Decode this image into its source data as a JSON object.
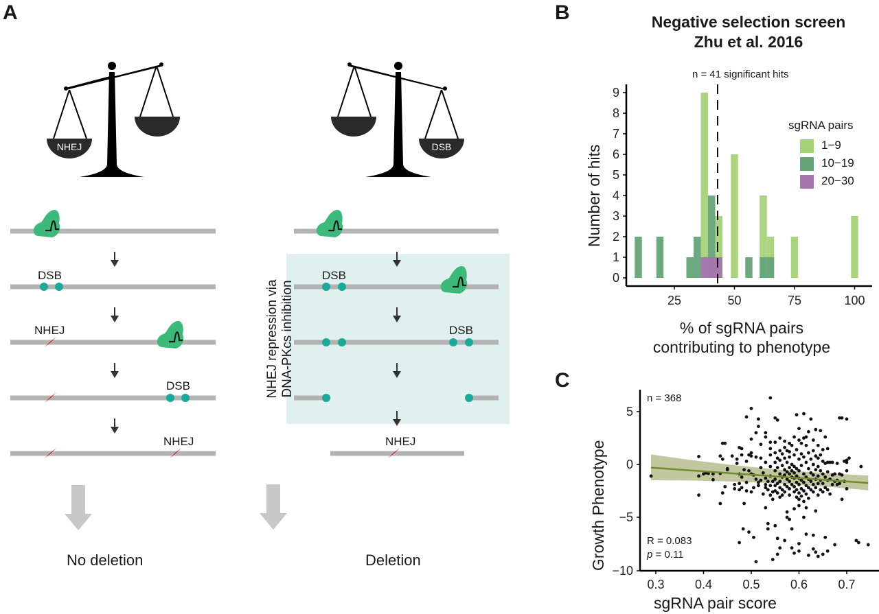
{
  "panels": {
    "a": {
      "label": "A",
      "left": {
        "scale_pan_label": "NHEJ",
        "steps": [
          {
            "label": ""
          },
          {
            "label": "DSB"
          },
          {
            "label": "NHEJ"
          },
          {
            "label": "DSB"
          },
          {
            "label": "NHEJ"
          }
        ],
        "outcome": "No deletion"
      },
      "right": {
        "scale_pan_label": "DSB",
        "inhibition_label_line1": "NHEJ repression via",
        "inhibition_label_line2": "DNA-PKcs inhibition",
        "steps": [
          {
            "label": ""
          },
          {
            "label": "DSB"
          },
          {
            "label": "DSB"
          },
          {
            "label": ""
          },
          {
            "label": "NHEJ"
          }
        ],
        "outcome": "Deletion"
      },
      "icons": [
        "balance-scale-icon",
        "cas9-complex-icon",
        "dsb-dot-icon",
        "nhej-lightning-icon",
        "down-arrow-icon"
      ],
      "colors": {
        "dna": "#b3b3b3",
        "cas9": "#3dba7a",
        "dsb": "#1aa99a",
        "nhej": "#d42626",
        "inhibition_box": "#e0f0ee",
        "outcome_arrow": "#c8c8c8"
      }
    },
    "b": {
      "label": "B"
    },
    "c": {
      "label": "C"
    }
  },
  "chart_data": [
    {
      "type": "bar",
      "panel": "B",
      "title": "Negative selection screen",
      "subtitle": "Zhu et al. 2016",
      "annotation": "n = 41 significant hits",
      "xlabel_line1": "% of sgRNA pairs",
      "xlabel_line2": "contributing to phenotype",
      "ylabel": "Number of hits",
      "xlim": [
        5,
        105
      ],
      "ylim": [
        0,
        9
      ],
      "xticks": [
        25,
        50,
        75,
        100
      ],
      "yticks": [
        0,
        1,
        2,
        3,
        4,
        5,
        6,
        7,
        8,
        9
      ],
      "bin_width": 3,
      "threshold_line": 43,
      "legend": {
        "title": "sgRNA pairs",
        "position": "right"
      },
      "series": [
        {
          "name": "1−9",
          "color": "#a6d279",
          "bins": [
            [
              37.5,
              9
            ],
            [
              43.5,
              3
            ],
            [
              50,
              6
            ],
            [
              62,
              4
            ],
            [
              65,
              2
            ],
            [
              75,
              2
            ],
            [
              100,
              3
            ]
          ]
        },
        {
          "name": "10−19",
          "color": "#66a37a",
          "bins": [
            [
              10,
              2
            ],
            [
              19,
              2
            ],
            [
              31.5,
              1
            ],
            [
              34.5,
              2
            ],
            [
              40.5,
              4
            ],
            [
              56,
              1
            ],
            [
              62,
              1
            ],
            [
              65,
              1
            ]
          ]
        },
        {
          "name": "20−30",
          "color": "#a574ae",
          "bins": [
            [
              37.5,
              1
            ],
            [
              40.5,
              1
            ],
            [
              43.5,
              1
            ]
          ]
        }
      ]
    },
    {
      "type": "scatter",
      "panel": "C",
      "xlabel": "sgRNA pair score",
      "ylabel": "Growth Phenotype",
      "xlim": [
        0.27,
        0.76
      ],
      "ylim": [
        -10,
        6.7
      ],
      "xticks": [
        0.3,
        0.4,
        0.5,
        0.6,
        0.7
      ],
      "yticks": [
        5,
        0,
        -5,
        -10
      ],
      "n_label": "n = 368",
      "r_label": "R = 0.083",
      "p_label_italic": "p",
      "p_label_rest": " = 0.11",
      "point_color": "#111111",
      "fit": {
        "x": [
          0.29,
          0.745
        ],
        "y": [
          -0.3,
          -1.75
        ],
        "ci_lower_at_ends": [
          -1.5,
          -2.45
        ],
        "ci_upper_at_ends": [
          0.95,
          -1.05
        ],
        "color": "#6f8a2a",
        "band_color": "#b9bd8f"
      },
      "points": [
        [
          0.29,
          -1.1
        ],
        [
          0.39,
          0.75
        ],
        [
          0.39,
          -1.1
        ],
        [
          0.39,
          -2.9
        ],
        [
          0.4,
          -0.9
        ],
        [
          0.405,
          -0.8
        ],
        [
          0.41,
          -0.85
        ],
        [
          0.42,
          -0.9
        ],
        [
          0.42,
          -1.45
        ],
        [
          0.435,
          0.8
        ],
        [
          0.435,
          -0.85
        ],
        [
          0.435,
          -3.7
        ],
        [
          0.44,
          -2.7
        ],
        [
          0.44,
          0.5
        ],
        [
          0.44,
          2.0
        ],
        [
          0.445,
          2.0
        ],
        [
          0.445,
          -2.1
        ],
        [
          0.45,
          -0.5
        ],
        [
          0.45,
          -0.4
        ],
        [
          0.46,
          0.8
        ],
        [
          0.465,
          -1.9
        ],
        [
          0.465,
          -2.3
        ],
        [
          0.47,
          0.1
        ],
        [
          0.47,
          0.5
        ],
        [
          0.475,
          1.6
        ],
        [
          0.475,
          -0.9
        ],
        [
          0.475,
          -1.8
        ],
        [
          0.475,
          -2.4
        ],
        [
          0.475,
          -7.4
        ],
        [
          0.48,
          1.5
        ],
        [
          0.48,
          0.9
        ],
        [
          0.48,
          -1.2
        ],
        [
          0.48,
          -2.2
        ],
        [
          0.483,
          -6.1
        ],
        [
          0.485,
          -0.5
        ],
        [
          0.485,
          -3.7
        ],
        [
          0.49,
          0.3
        ],
        [
          0.49,
          -1.7
        ],
        [
          0.49,
          -2.5
        ],
        [
          0.49,
          4.5
        ],
        [
          0.495,
          0.9
        ],
        [
          0.495,
          -0.6
        ],
        [
          0.495,
          -6.4
        ],
        [
          0.5,
          5.3
        ],
        [
          0.5,
          2.4
        ],
        [
          0.5,
          1.1
        ],
        [
          0.5,
          0.8
        ],
        [
          0.5,
          -0.9
        ],
        [
          0.5,
          -2.6
        ],
        [
          0.505,
          -1.0
        ],
        [
          0.505,
          -2.2
        ],
        [
          0.505,
          -6.9
        ],
        [
          0.51,
          3.0
        ],
        [
          0.51,
          0.7
        ],
        [
          0.51,
          -1.4
        ],
        [
          0.51,
          -9.2
        ],
        [
          0.515,
          4.3
        ],
        [
          0.515,
          3.6
        ],
        [
          0.515,
          -1.7
        ],
        [
          0.515,
          -2.0
        ],
        [
          0.52,
          1.9
        ],
        [
          0.52,
          0.6
        ],
        [
          0.52,
          -0.3
        ],
        [
          0.52,
          -1.5
        ],
        [
          0.525,
          -2.8
        ],
        [
          0.525,
          -0.8
        ],
        [
          0.53,
          3.0
        ],
        [
          0.53,
          2.6
        ],
        [
          0.53,
          0.2
        ],
        [
          0.53,
          -1.3
        ],
        [
          0.53,
          -1.9
        ],
        [
          0.53,
          -2.2
        ],
        [
          0.53,
          -4.1
        ],
        [
          0.535,
          -1.6
        ],
        [
          0.535,
          -2.4
        ],
        [
          0.535,
          -5.6
        ],
        [
          0.535,
          -6.1
        ],
        [
          0.54,
          6.3
        ],
        [
          0.54,
          2.1
        ],
        [
          0.54,
          1.5
        ],
        [
          0.54,
          0.9
        ],
        [
          0.54,
          -0.2
        ],
        [
          0.54,
          -1.1
        ],
        [
          0.54,
          -2.0
        ],
        [
          0.54,
          -2.9
        ],
        [
          0.545,
          -1.6
        ],
        [
          0.545,
          -2.6
        ],
        [
          0.545,
          -3.3
        ],
        [
          0.545,
          -9.0
        ],
        [
          0.55,
          4.4
        ],
        [
          0.55,
          2.1
        ],
        [
          0.55,
          1.1
        ],
        [
          0.55,
          0.2
        ],
        [
          0.55,
          -0.6
        ],
        [
          0.55,
          -1.4
        ],
        [
          0.55,
          -2.0
        ],
        [
          0.55,
          -2.5
        ],
        [
          0.55,
          -5.8
        ],
        [
          0.555,
          4.2
        ],
        [
          0.555,
          0.6
        ],
        [
          0.555,
          -0.3
        ],
        [
          0.555,
          -1.8
        ],
        [
          0.555,
          -2.7
        ],
        [
          0.555,
          -7.0
        ],
        [
          0.555,
          -8.5
        ],
        [
          0.56,
          2.5
        ],
        [
          0.56,
          1.3
        ],
        [
          0.56,
          0.4
        ],
        [
          0.56,
          -0.9
        ],
        [
          0.56,
          -1.6
        ],
        [
          0.56,
          -2.2
        ],
        [
          0.56,
          -3.1
        ],
        [
          0.56,
          -7.9
        ],
        [
          0.565,
          1.0
        ],
        [
          0.565,
          -0.1
        ],
        [
          0.565,
          -1.2
        ],
        [
          0.565,
          -2.4
        ],
        [
          0.565,
          -2.9
        ],
        [
          0.57,
          2.2
        ],
        [
          0.57,
          1.6
        ],
        [
          0.57,
          0.6
        ],
        [
          0.57,
          -0.5
        ],
        [
          0.57,
          -1.0
        ],
        [
          0.57,
          -1.9
        ],
        [
          0.57,
          -2.6
        ],
        [
          0.57,
          -7.2
        ],
        [
          0.575,
          1.3
        ],
        [
          0.575,
          0.2
        ],
        [
          0.575,
          -0.7
        ],
        [
          0.575,
          -1.4
        ],
        [
          0.575,
          -2.1
        ],
        [
          0.575,
          -4.5
        ],
        [
          0.575,
          -5.0
        ],
        [
          0.58,
          2.0
        ],
        [
          0.58,
          1.2
        ],
        [
          0.58,
          0.7
        ],
        [
          0.58,
          -0.3
        ],
        [
          0.58,
          -0.9
        ],
        [
          0.58,
          -1.6
        ],
        [
          0.58,
          -2.3
        ],
        [
          0.58,
          -2.9
        ],
        [
          0.58,
          -5.2
        ],
        [
          0.585,
          1.8
        ],
        [
          0.585,
          0.0
        ],
        [
          0.585,
          -0.6
        ],
        [
          0.585,
          -1.2
        ],
        [
          0.585,
          -1.9
        ],
        [
          0.585,
          -6.1
        ],
        [
          0.585,
          -7.9
        ],
        [
          0.59,
          2.6
        ],
        [
          0.59,
          0.9
        ],
        [
          0.59,
          -0.2
        ],
        [
          0.59,
          -0.8
        ],
        [
          0.59,
          -1.3
        ],
        [
          0.59,
          -2.1
        ],
        [
          0.59,
          -2.6
        ],
        [
          0.59,
          -4.2
        ],
        [
          0.59,
          -8.4
        ],
        [
          0.595,
          4.7
        ],
        [
          0.595,
          1.4
        ],
        [
          0.595,
          -0.4
        ],
        [
          0.595,
          -1.1
        ],
        [
          0.595,
          -1.7
        ],
        [
          0.595,
          -2.4
        ],
        [
          0.595,
          -3.1
        ],
        [
          0.6,
          3.4
        ],
        [
          0.6,
          2.3
        ],
        [
          0.6,
          0.5
        ],
        [
          0.6,
          -0.6
        ],
        [
          0.6,
          -1.3
        ],
        [
          0.6,
          -1.9
        ],
        [
          0.6,
          -2.7
        ],
        [
          0.6,
          -3.3
        ],
        [
          0.6,
          -3.9
        ],
        [
          0.6,
          -7.5
        ],
        [
          0.6,
          -8.2
        ],
        [
          0.605,
          2.0
        ],
        [
          0.605,
          1.0
        ],
        [
          0.605,
          -0.1
        ],
        [
          0.605,
          -1.5
        ],
        [
          0.605,
          -2.3
        ],
        [
          0.605,
          -3.0
        ],
        [
          0.61,
          4.8
        ],
        [
          0.61,
          2.5
        ],
        [
          0.61,
          0.7
        ],
        [
          0.61,
          -0.9
        ],
        [
          0.61,
          -1.7
        ],
        [
          0.61,
          -2.5
        ],
        [
          0.61,
          -3.5
        ],
        [
          0.61,
          -5.0
        ],
        [
          0.615,
          2.6
        ],
        [
          0.615,
          1.8
        ],
        [
          0.615,
          0.2
        ],
        [
          0.615,
          -1.2
        ],
        [
          0.615,
          -2.0
        ],
        [
          0.615,
          -2.8
        ],
        [
          0.615,
          -4.1
        ],
        [
          0.615,
          -6.6
        ],
        [
          0.62,
          3.1
        ],
        [
          0.62,
          1.1
        ],
        [
          0.62,
          -0.4
        ],
        [
          0.62,
          -1.4
        ],
        [
          0.62,
          -2.2
        ],
        [
          0.62,
          -3.2
        ],
        [
          0.62,
          -8.6
        ],
        [
          0.625,
          4.3
        ],
        [
          0.625,
          0.5
        ],
        [
          0.625,
          -0.8
        ],
        [
          0.625,
          -1.6
        ],
        [
          0.625,
          -2.4
        ],
        [
          0.63,
          2.3
        ],
        [
          0.63,
          1.3
        ],
        [
          0.63,
          0.0
        ],
        [
          0.63,
          -1.0
        ],
        [
          0.63,
          -1.9
        ],
        [
          0.63,
          -2.6
        ],
        [
          0.63,
          -6.7
        ],
        [
          0.63,
          -8.0
        ],
        [
          0.635,
          3.3
        ],
        [
          0.635,
          0.8
        ],
        [
          0.635,
          -0.5
        ],
        [
          0.635,
          -1.4
        ],
        [
          0.635,
          -2.2
        ],
        [
          0.635,
          -4.4
        ],
        [
          0.635,
          -8.3
        ],
        [
          0.64,
          1.8
        ],
        [
          0.64,
          0.6
        ],
        [
          0.64,
          -0.2
        ],
        [
          0.64,
          -1.1
        ],
        [
          0.64,
          -1.8
        ],
        [
          0.64,
          -2.9
        ],
        [
          0.64,
          -8.7
        ],
        [
          0.645,
          3.2
        ],
        [
          0.645,
          0.9
        ],
        [
          0.645,
          -0.6
        ],
        [
          0.645,
          -1.5
        ],
        [
          0.645,
          -2.4
        ],
        [
          0.65,
          1.4
        ],
        [
          0.65,
          0.3
        ],
        [
          0.65,
          -0.9
        ],
        [
          0.65,
          -1.8
        ],
        [
          0.65,
          -2.6
        ],
        [
          0.65,
          -8.5
        ],
        [
          0.655,
          2.6
        ],
        [
          0.655,
          0.1
        ],
        [
          0.655,
          -1.2
        ],
        [
          0.655,
          -2.2
        ],
        [
          0.655,
          -6.9
        ],
        [
          0.66,
          1.5
        ],
        [
          0.66,
          0.2
        ],
        [
          0.66,
          -0.7
        ],
        [
          0.66,
          -1.5
        ],
        [
          0.66,
          -2.4
        ],
        [
          0.66,
          -8.2
        ],
        [
          0.665,
          0.2
        ],
        [
          0.665,
          -1.4
        ],
        [
          0.665,
          -2.8
        ],
        [
          0.67,
          0.2
        ],
        [
          0.67,
          -1.0
        ],
        [
          0.67,
          -1.9
        ],
        [
          0.675,
          -0.9
        ],
        [
          0.675,
          -1.6
        ],
        [
          0.675,
          -7.6
        ],
        [
          0.68,
          0.1
        ],
        [
          0.68,
          -1.5
        ],
        [
          0.68,
          -1.9
        ],
        [
          0.685,
          4.4
        ],
        [
          0.685,
          -0.9
        ],
        [
          0.685,
          -1.8
        ],
        [
          0.69,
          4.4
        ],
        [
          0.69,
          -1.0
        ],
        [
          0.69,
          -3.3
        ],
        [
          0.695,
          0.3
        ],
        [
          0.695,
          -1.6
        ],
        [
          0.7,
          0.4
        ],
        [
          0.7,
          0.2
        ],
        [
          0.7,
          -0.6
        ],
        [
          0.7,
          -2.3
        ],
        [
          0.7,
          4.3
        ],
        [
          0.705,
          0.6
        ],
        [
          0.72,
          -7.2
        ],
        [
          0.725,
          -7.4
        ],
        [
          0.73,
          -0.2
        ],
        [
          0.745,
          -7.6
        ]
      ]
    }
  ]
}
